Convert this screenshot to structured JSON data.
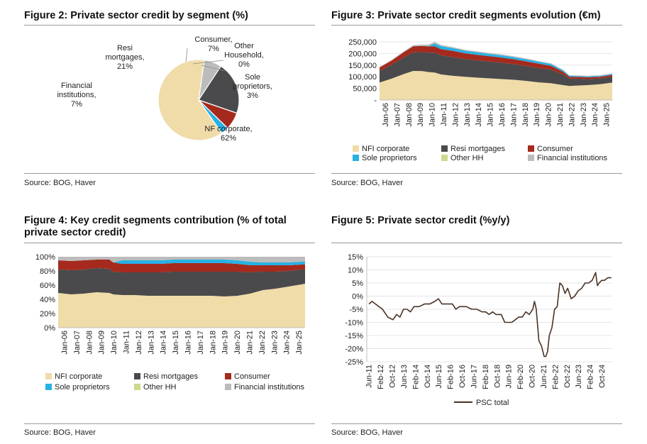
{
  "colors": {
    "nfi": "#f0dca8",
    "resi": "#4a4a4c",
    "consumer": "#a52a1d",
    "sole": "#27b1e4",
    "otherhh": "#cfd88d",
    "financial": "#bcbcbc",
    "psc_line": "#4a3326",
    "axis": "#bfbfbf",
    "grid": "#e4e4e4"
  },
  "fig2": {
    "title": "Figure 2: Private sector credit by segment (%)",
    "source": "Source: BOG, Haver",
    "chart_data": {
      "type": "pie",
      "title": "Figure 2: Private sector credit by segment (%)",
      "slices": [
        {
          "name": "NF corporate",
          "value": 62,
          "label": "62%",
          "color": "#f0dca8"
        },
        {
          "name": "Financial institutions",
          "value": 7,
          "label": "7%",
          "color": "#bcbcbc"
        },
        {
          "name": "Resi mortgages",
          "value": 21,
          "label": "21%",
          "color": "#4a4a4c"
        },
        {
          "name": "Consumer",
          "value": 7,
          "label": "7%",
          "color": "#a52a1d"
        },
        {
          "name": "Other Household",
          "value": 0,
          "label": "0%",
          "color": "#cfd88d"
        },
        {
          "name": "Sole proprietors",
          "value": 3,
          "label": "3%",
          "color": "#27b1e4"
        }
      ]
    },
    "labels": {
      "nfi": [
        "NF corporate,",
        "62%"
      ],
      "fin": [
        "Financial",
        "institutions,",
        "7%"
      ],
      "resi": [
        "Resi",
        "mortgages,",
        "21%"
      ],
      "cons": [
        "Consumer,",
        "7%"
      ],
      "other": [
        "Other",
        "Household,",
        "0%"
      ],
      "sole": [
        "Sole",
        "proprietors,",
        "3%"
      ]
    }
  },
  "fig3": {
    "title": "Figure 3: Private sector credit segments evolution (€m)",
    "source": "Source: BOG, Haver",
    "legend": [
      "NFI corporate",
      "Resi mortgages",
      "Consumer",
      "Sole proprietors",
      "Other HH",
      "Financial institutions"
    ],
    "chart_data": {
      "type": "area",
      "title": "Figure 3: Private sector credit segments evolution (€m)",
      "stacked": true,
      "x": [
        2006.0,
        2007.0,
        2008.0,
        2008.75,
        2009.5,
        2010.0,
        2010.5,
        2011.0,
        2012.0,
        2013.0,
        2014.0,
        2015.0,
        2016.0,
        2017.0,
        2018.0,
        2019.0,
        2020.0,
        2021.0,
        2021.5,
        2022.0,
        2023.0,
        2024.0,
        2025.0
      ],
      "x_ticks": [
        "Jan-06",
        "Jan-07",
        "Jan-08",
        "Jan-09",
        "Jan-10",
        "Jan-11",
        "Jan-12",
        "Jan-13",
        "Jan-14",
        "Jan-15",
        "Jan-16",
        "Jan-17",
        "Jan-18",
        "Jan-19",
        "Jan-20",
        "Jan-21",
        "Jan-22",
        "Jan-23",
        "Jan-24",
        "Jan-25"
      ],
      "ylim": [
        0,
        250000
      ],
      "y_ticks": [
        "-",
        "50,000",
        "100,000",
        "150,000",
        "200,000",
        "250,000"
      ],
      "series": [
        {
          "name": "NFI corporate",
          "values": [
            75000,
            92000,
            112000,
            125000,
            124000,
            120000,
            118000,
            110000,
            104000,
            100000,
            96000,
            93000,
            90000,
            87000,
            82000,
            76000,
            72000,
            64000,
            60000,
            62000,
            64000,
            68000,
            75000
          ]
        },
        {
          "name": "Resi mortgages",
          "values": [
            50000,
            60000,
            72000,
            80000,
            82000,
            84000,
            85000,
            82000,
            80000,
            76000,
            74000,
            72000,
            70000,
            67000,
            64000,
            61000,
            58000,
            45000,
            32000,
            30000,
            26000,
            24000,
            25000
          ]
        },
        {
          "name": "Consumer",
          "values": [
            15000,
            18000,
            22000,
            26000,
            26000,
            27000,
            28000,
            27000,
            27000,
            25000,
            24000,
            23000,
            22000,
            21000,
            20000,
            19000,
            17000,
            12000,
            8000,
            8000,
            8000,
            8000,
            8000
          ]
        },
        {
          "name": "Sole proprietors",
          "values": [
            0,
            0,
            0,
            0,
            0,
            1000,
            12000,
            13000,
            12000,
            11000,
            11000,
            10000,
            10000,
            9000,
            9000,
            8500,
            8000,
            6000,
            4000,
            3500,
            3500,
            3500,
            3500
          ]
        },
        {
          "name": "Other HH",
          "values": [
            0,
            0,
            0,
            0,
            0,
            0,
            0,
            0,
            0,
            0,
            0,
            0,
            0,
            0,
            0,
            0,
            0,
            0,
            0,
            0,
            0,
            0,
            0
          ]
        },
        {
          "name": "Financial institutions",
          "values": [
            2000,
            3000,
            4000,
            5000,
            6000,
            6000,
            7000,
            5000,
            4000,
            4000,
            4000,
            4000,
            4000,
            3500,
            3500,
            3000,
            3000,
            2500,
            2500,
            2500,
            3000,
            3000,
            3000
          ]
        }
      ]
    }
  },
  "fig4": {
    "title_lines": [
      "Figure 4: Key credit segments contribution (% of total",
      "private sector credit)"
    ],
    "source": "Source: BOG, Haver",
    "legend": [
      "NFI corporate",
      "Resi mortgages",
      "Consumer",
      "Sole proprietors",
      "Other HH",
      "Financial institutions"
    ],
    "chart_data": {
      "type": "area",
      "title": "Figure 4: Key credit segments contribution (% of total private sector credit)",
      "stacked": true,
      "x": [
        2006.0,
        2007.0,
        2008.0,
        2009.0,
        2010.0,
        2010.3,
        2011.0,
        2012.0,
        2013.0,
        2014.0,
        2015.0,
        2016.0,
        2017.0,
        2018.0,
        2019.0,
        2020.0,
        2021.0,
        2022.0,
        2023.0,
        2024.0,
        2025.0,
        2025.3
      ],
      "x_ticks": [
        "Jan-06",
        "Jan-07",
        "Jan-08",
        "Jan-09",
        "Jan-10",
        "Jan-11",
        "Jan-12",
        "Jan-13",
        "Jan-14",
        "Jan-15",
        "Jan-16",
        "Jan-17",
        "Jan-18",
        "Jan-19",
        "Jan-20",
        "Jan-21",
        "Jan-22",
        "Jan-23",
        "Jan-24",
        "Jan-25"
      ],
      "ylim": [
        0,
        100
      ],
      "y_ticks": [
        "0%",
        "20%",
        "40%",
        "60%",
        "80%",
        "100%"
      ],
      "series": [
        {
          "name": "NFI corporate",
          "values": [
            49,
            47,
            48,
            50,
            49,
            47,
            46,
            46,
            45,
            45,
            45,
            45,
            45,
            45,
            44,
            45,
            48,
            53,
            55,
            58,
            61,
            62
          ]
        },
        {
          "name": "Resi mortgages",
          "values": [
            33,
            34,
            34,
            34,
            34,
            32,
            32,
            32,
            33,
            33,
            34,
            34,
            34,
            34,
            35,
            34,
            30,
            26,
            24,
            22,
            21,
            20
          ]
        },
        {
          "name": "Consumer",
          "values": [
            13,
            13,
            13,
            12,
            13,
            13,
            12,
            12,
            12,
            12,
            12,
            12,
            12,
            12,
            12,
            11,
            10,
            9,
            9,
            8,
            7,
            7
          ]
        },
        {
          "name": "Sole proprietors",
          "values": [
            0,
            0,
            0,
            0,
            0,
            0,
            5,
            5,
            5,
            5,
            5,
            5,
            5,
            5,
            5,
            5,
            5,
            4,
            4,
            4,
            4,
            4
          ]
        },
        {
          "name": "Other HH",
          "values": [
            0,
            0,
            0,
            0,
            0,
            0,
            0,
            0,
            0,
            0,
            0,
            0,
            0,
            0,
            0,
            0,
            0,
            0,
            0,
            0,
            0,
            0
          ]
        },
        {
          "name": "Financial institutions",
          "values": [
            5,
            6,
            5,
            4,
            4,
            8,
            5,
            5,
            5,
            5,
            4,
            4,
            4,
            4,
            4,
            5,
            7,
            8,
            8,
            8,
            7,
            7
          ]
        }
      ]
    }
  },
  "fig5": {
    "title": "Figure 5: Private sector credit (%y/y)",
    "source": "Source: BOG, Haver",
    "legend_label": "PSC total",
    "chart_data": {
      "type": "line",
      "title": "Figure 5: Private sector credit (%y/y)",
      "ylim": [
        -25,
        15
      ],
      "y_ticks": [
        "-25%",
        "-20%",
        "-15%",
        "-10%",
        "-5%",
        "0%",
        "5%",
        "10%",
        "15%"
      ],
      "x_ticks": [
        "Jun-11",
        "Feb-12",
        "Oct-12",
        "Jun-13",
        "Feb-14",
        "Oct-14",
        "Jun-15",
        "Feb-16",
        "Oct-16",
        "Jun-17",
        "Feb-18",
        "Oct-18",
        "Jun-19",
        "Feb-20",
        "Oct-20",
        "Jun-21",
        "Feb-22",
        "Oct-22",
        "Jun-23",
        "Feb-24",
        "Oct-24"
      ],
      "series": [
        {
          "name": "PSC total",
          "x": [
            2011.42,
            2011.6,
            2011.8,
            2012.0,
            2012.2,
            2012.5,
            2012.8,
            2013.0,
            2013.2,
            2013.4,
            2013.6,
            2013.8,
            2014.0,
            2014.3,
            2014.6,
            2014.9,
            2015.2,
            2015.4,
            2015.6,
            2015.8,
            2016.0,
            2016.2,
            2016.4,
            2016.6,
            2016.8,
            2017.0,
            2017.3,
            2017.6,
            2017.9,
            2018.1,
            2018.3,
            2018.5,
            2018.7,
            2019.0,
            2019.2,
            2019.4,
            2019.6,
            2019.8,
            2020.0,
            2020.2,
            2020.4,
            2020.6,
            2020.8,
            2020.9,
            2021.0,
            2021.15,
            2021.3,
            2021.45,
            2021.55,
            2021.65,
            2021.75,
            2021.9,
            2022.05,
            2022.2,
            2022.35,
            2022.5,
            2022.65,
            2022.8,
            2023.0,
            2023.2,
            2023.4,
            2023.6,
            2023.8,
            2024.0,
            2024.2,
            2024.4,
            2024.5,
            2024.6,
            2024.75,
            2024.9,
            2025.1,
            2025.3
          ],
          "values": [
            -3,
            -2,
            -3,
            -4,
            -5,
            -8,
            -9,
            -7,
            -8,
            -5,
            -5,
            -6,
            -4,
            -4,
            -3,
            -3,
            -2,
            -1,
            -3,
            -3,
            -3,
            -3,
            -5,
            -4,
            -4,
            -4,
            -5,
            -5,
            -6,
            -6,
            -7,
            -6,
            -7,
            -7,
            -10,
            -10,
            -10,
            -9,
            -8,
            -8,
            -6,
            -7,
            -5,
            -2,
            -5,
            -17,
            -19,
            -23,
            -23,
            -21,
            -15,
            -12,
            -5,
            -4,
            5,
            4,
            1,
            3,
            -1,
            0,
            2,
            3,
            5,
            5,
            6,
            9,
            4,
            5,
            6,
            6,
            7,
            7
          ]
        }
      ]
    }
  }
}
